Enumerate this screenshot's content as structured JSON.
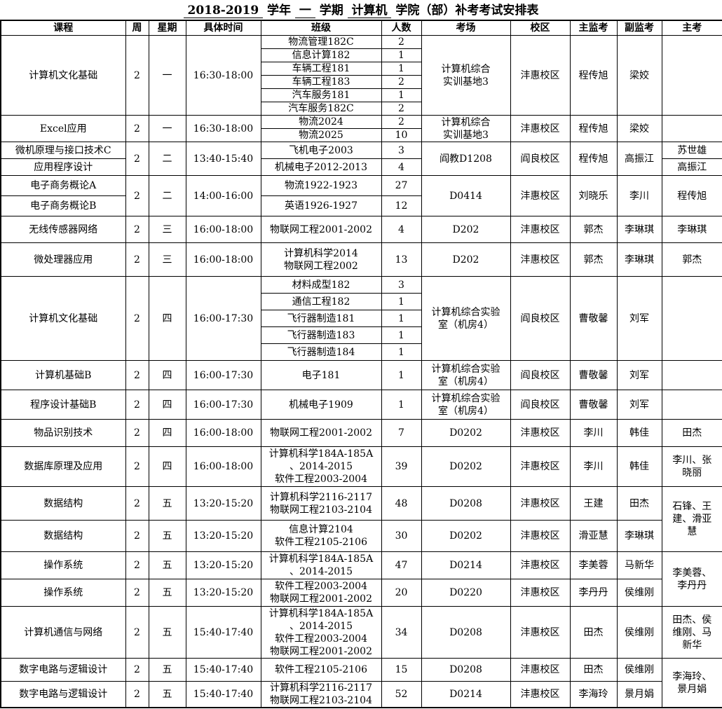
{
  "title": {
    "parts": [
      {
        "t": " 2018-2019 ",
        "u": true
      },
      {
        "t": " 学年 ",
        "u": false
      },
      {
        "t": " 一 ",
        "u": true
      },
      {
        "t": " 学期 ",
        "u": false
      },
      {
        "t": " 计算机 ",
        "u": true
      },
      {
        "t": " 学院（部）补考考试安排表",
        "u": false
      }
    ]
  },
  "table": {
    "headers": [
      "课程",
      "周",
      "星期",
      "具体时间",
      "班级",
      "人数",
      "考场",
      "校区",
      "主监考",
      "副监考",
      "主考"
    ],
    "column_names": [
      "course",
      "week",
      "weekday",
      "time",
      "class-name",
      "student-count",
      "exam-room",
      "campus",
      "chief-invigilator",
      "deputy-invigilator",
      "chief-examiner"
    ],
    "rows": [
      {
        "cells": [
          {
            "t": "计算机文化基础",
            "rs": 6
          },
          {
            "t": "2",
            "rs": 6
          },
          {
            "t": "一",
            "rs": 6
          },
          {
            "t": "16:30-18:00",
            "rs": 6
          },
          {
            "t": "物流管理182C"
          },
          {
            "t": "2"
          },
          {
            "t": "计算机综合\n实训基地3",
            "rs": 6
          },
          {
            "t": "沣惠校区",
            "rs": 6
          },
          {
            "t": "程传旭",
            "rs": 6
          },
          {
            "t": "梁姣",
            "rs": 6
          },
          {
            "t": "",
            "rs": 6
          }
        ]
      },
      {
        "cells": [
          {
            "t": "信息计算182"
          },
          {
            "t": "1"
          }
        ]
      },
      {
        "cells": [
          {
            "t": "车辆工程181"
          },
          {
            "t": "1"
          }
        ]
      },
      {
        "cells": [
          {
            "t": "车辆工程183"
          },
          {
            "t": "2"
          }
        ]
      },
      {
        "cells": [
          {
            "t": "汽车服务181"
          },
          {
            "t": "1"
          }
        ]
      },
      {
        "cells": [
          {
            "t": "汽车服务182C"
          },
          {
            "t": "2"
          }
        ]
      },
      {
        "cells": [
          {
            "t": "Excel应用",
            "rs": 2
          },
          {
            "t": "2",
            "rs": 2
          },
          {
            "t": "一",
            "rs": 2
          },
          {
            "t": "16:30-18:00",
            "rs": 2
          },
          {
            "t": "物流2024"
          },
          {
            "t": "2"
          },
          {
            "t": "计算机综合\n实训基地3",
            "rs": 2
          },
          {
            "t": "沣惠校区",
            "rs": 2
          },
          {
            "t": "程传旭",
            "rs": 2
          },
          {
            "t": "梁姣",
            "rs": 2
          },
          {
            "t": "",
            "rs": 2
          }
        ]
      },
      {
        "cells": [
          {
            "t": "物流2025"
          },
          {
            "t": "10"
          }
        ]
      },
      {
        "cells": [
          {
            "t": "微机原理与接口技术C"
          },
          {
            "t": "2",
            "rs": 2
          },
          {
            "t": "二",
            "rs": 2
          },
          {
            "t": "13:40-15:40",
            "rs": 2
          },
          {
            "t": "飞机电子2003"
          },
          {
            "t": "3"
          },
          {
            "t": "阎教D1208",
            "rs": 2
          },
          {
            "t": "阎良校区",
            "rs": 2
          },
          {
            "t": "程传旭",
            "rs": 2
          },
          {
            "t": "高振江",
            "rs": 2
          },
          {
            "t": "苏世雄"
          }
        ]
      },
      {
        "cells": [
          {
            "t": "应用程序设计"
          },
          {
            "t": "机械电子2012-2013"
          },
          {
            "t": "4"
          },
          {
            "t": "高振江"
          }
        ]
      },
      {
        "cells": [
          {
            "t": "电子商务概论A"
          },
          {
            "t": "2",
            "rs": 2
          },
          {
            "t": "二",
            "rs": 2
          },
          {
            "t": "14:00-16:00",
            "rs": 2
          },
          {
            "t": "物流1922-1923"
          },
          {
            "t": "27"
          },
          {
            "t": "D0414",
            "rs": 2
          },
          {
            "t": "沣惠校区",
            "rs": 2
          },
          {
            "t": "刘晓乐",
            "rs": 2
          },
          {
            "t": "李川",
            "rs": 2
          },
          {
            "t": "程传旭",
            "rs": 2
          }
        ]
      },
      {
        "cells": [
          {
            "t": "电子商务概论B"
          },
          {
            "t": "英语1926-1927"
          },
          {
            "t": "12"
          }
        ]
      },
      {
        "cells": [
          {
            "t": "无线传感器网络"
          },
          {
            "t": "2"
          },
          {
            "t": "三"
          },
          {
            "t": "16:00-18:00"
          },
          {
            "t": "物联网工程2001-2002"
          },
          {
            "t": "4"
          },
          {
            "t": "D202"
          },
          {
            "t": "沣惠校区"
          },
          {
            "t": "郭杰"
          },
          {
            "t": "李琳琪"
          },
          {
            "t": "李琳琪"
          }
        ]
      },
      {
        "cells": [
          {
            "t": "微处理器应用"
          },
          {
            "t": "2"
          },
          {
            "t": "三"
          },
          {
            "t": "16:00-18:00"
          },
          {
            "t": "计算机科学2014\n物联网工程2002"
          },
          {
            "t": "13"
          },
          {
            "t": "D202"
          },
          {
            "t": "沣惠校区"
          },
          {
            "t": "郭杰"
          },
          {
            "t": "李琳琪"
          },
          {
            "t": "郭杰"
          }
        ]
      },
      {
        "cells": [
          {
            "t": "计算机文化基础",
            "rs": 5
          },
          {
            "t": "2",
            "rs": 5
          },
          {
            "t": "四",
            "rs": 5
          },
          {
            "t": "16:00-17:30",
            "rs": 5
          },
          {
            "t": "材料成型182"
          },
          {
            "t": "3"
          },
          {
            "t": "计算机综合实验\n室（机房4）",
            "rs": 5
          },
          {
            "t": "阎良校区",
            "rs": 5
          },
          {
            "t": "曹敬馨",
            "rs": 5
          },
          {
            "t": "刘军",
            "rs": 5
          },
          {
            "t": "",
            "rs": 5
          }
        ]
      },
      {
        "cells": [
          {
            "t": "通信工程182"
          },
          {
            "t": "1"
          }
        ]
      },
      {
        "cells": [
          {
            "t": "飞行器制造181"
          },
          {
            "t": "1"
          }
        ]
      },
      {
        "cells": [
          {
            "t": "飞行器制造183"
          },
          {
            "t": "1"
          }
        ]
      },
      {
        "cells": [
          {
            "t": "飞行器制造184"
          },
          {
            "t": "1"
          }
        ]
      },
      {
        "cells": [
          {
            "t": "计算机基础B"
          },
          {
            "t": "2"
          },
          {
            "t": "四"
          },
          {
            "t": "16:00-17:30"
          },
          {
            "t": "电子181"
          },
          {
            "t": "1"
          },
          {
            "t": "计算机综合实验\n室（机房4）"
          },
          {
            "t": "阎良校区"
          },
          {
            "t": "曹敬馨"
          },
          {
            "t": "刘军"
          },
          {
            "t": ""
          }
        ]
      },
      {
        "cells": [
          {
            "t": "程序设计基础B"
          },
          {
            "t": "2"
          },
          {
            "t": "四"
          },
          {
            "t": "16:00-17:30"
          },
          {
            "t": "机械电子1909"
          },
          {
            "t": "1"
          },
          {
            "t": "计算机综合实验\n室（机房4）"
          },
          {
            "t": "阎良校区"
          },
          {
            "t": "曹敬馨"
          },
          {
            "t": "刘军"
          },
          {
            "t": ""
          }
        ]
      },
      {
        "cells": [
          {
            "t": "物品识别技术"
          },
          {
            "t": "2"
          },
          {
            "t": "四"
          },
          {
            "t": "16:00-18:00"
          },
          {
            "t": "物联网工程2001-2002"
          },
          {
            "t": "7"
          },
          {
            "t": "D0202"
          },
          {
            "t": "沣惠校区"
          },
          {
            "t": "李川"
          },
          {
            "t": "韩佳"
          },
          {
            "t": "田杰"
          }
        ]
      },
      {
        "cells": [
          {
            "t": "数据库原理及应用"
          },
          {
            "t": "2"
          },
          {
            "t": "四"
          },
          {
            "t": "16:00-18:00"
          },
          {
            "t": "计算机科学184A-185A\n、2014-2015\n软件工程2003-2004"
          },
          {
            "t": "39"
          },
          {
            "t": "D0202"
          },
          {
            "t": "沣惠校区"
          },
          {
            "t": "李川"
          },
          {
            "t": "韩佳"
          },
          {
            "t": "李川、张\n晓丽"
          }
        ]
      },
      {
        "cells": [
          {
            "t": "数据结构"
          },
          {
            "t": "2"
          },
          {
            "t": "五"
          },
          {
            "t": "13:20-15:20"
          },
          {
            "t": "计算机科学2116-2117\n物联网工程2103-2104"
          },
          {
            "t": "48"
          },
          {
            "t": "D0208"
          },
          {
            "t": "沣惠校区"
          },
          {
            "t": "王建"
          },
          {
            "t": "田杰"
          },
          {
            "t": "石锋、王\n建、滑亚\n慧",
            "rs": 2
          }
        ]
      },
      {
        "cells": [
          {
            "t": "数据结构"
          },
          {
            "t": "2"
          },
          {
            "t": "五"
          },
          {
            "t": "13:20-15:20"
          },
          {
            "t": "信息计算2104\n软件工程2105-2106"
          },
          {
            "t": "30"
          },
          {
            "t": "D0202"
          },
          {
            "t": "沣惠校区"
          },
          {
            "t": "滑亚慧"
          },
          {
            "t": "李琳琪"
          }
        ]
      },
      {
        "cells": [
          {
            "t": "操作系统"
          },
          {
            "t": "2"
          },
          {
            "t": "五"
          },
          {
            "t": "13:20-15:20"
          },
          {
            "t": "计算机科学184A-185A\n、2014-2015"
          },
          {
            "t": "47"
          },
          {
            "t": "D0214"
          },
          {
            "t": "沣惠校区"
          },
          {
            "t": "李美蓉"
          },
          {
            "t": "马新华"
          },
          {
            "t": "李美蓉、\n李丹丹",
            "rs": 2
          }
        ]
      },
      {
        "cells": [
          {
            "t": "操作系统"
          },
          {
            "t": "2"
          },
          {
            "t": "五"
          },
          {
            "t": "13:20-15:20"
          },
          {
            "t": "软件工程2003-2004\n物联网工程2001-2002"
          },
          {
            "t": "20"
          },
          {
            "t": "D0220"
          },
          {
            "t": "沣惠校区"
          },
          {
            "t": "李丹丹"
          },
          {
            "t": "侯维刚"
          }
        ]
      },
      {
        "cells": [
          {
            "t": "计算机通信与网络"
          },
          {
            "t": "2"
          },
          {
            "t": "五"
          },
          {
            "t": "15:40-17:40"
          },
          {
            "t": "计算机科学184A-185A\n、2014-2015\n软件工程2003-2004\n物联网工程2001-2002"
          },
          {
            "t": "34"
          },
          {
            "t": "D0208"
          },
          {
            "t": "沣惠校区"
          },
          {
            "t": "田杰"
          },
          {
            "t": "侯维刚"
          },
          {
            "t": "田杰、侯\n维刚、马\n新华"
          }
        ]
      },
      {
        "cells": [
          {
            "t": "数字电路与逻辑设计"
          },
          {
            "t": "2"
          },
          {
            "t": "五"
          },
          {
            "t": "15:40-17:40"
          },
          {
            "t": "软件工程2105-2106"
          },
          {
            "t": "15"
          },
          {
            "t": "D0208"
          },
          {
            "t": "沣惠校区"
          },
          {
            "t": "田杰"
          },
          {
            "t": "侯维刚"
          },
          {
            "t": "李海玲、\n景月娟",
            "rs": 2
          }
        ]
      },
      {
        "cells": [
          {
            "t": "数字电路与逻辑设计"
          },
          {
            "t": "2"
          },
          {
            "t": "五"
          },
          {
            "t": "15:40-17:40"
          },
          {
            "t": "计算机科学2116-2117\n物联网工程2103-2104"
          },
          {
            "t": "52"
          },
          {
            "t": "D0214"
          },
          {
            "t": "沣惠校区"
          },
          {
            "t": "李海玲"
          },
          {
            "t": "景月娟"
          }
        ]
      }
    ]
  }
}
